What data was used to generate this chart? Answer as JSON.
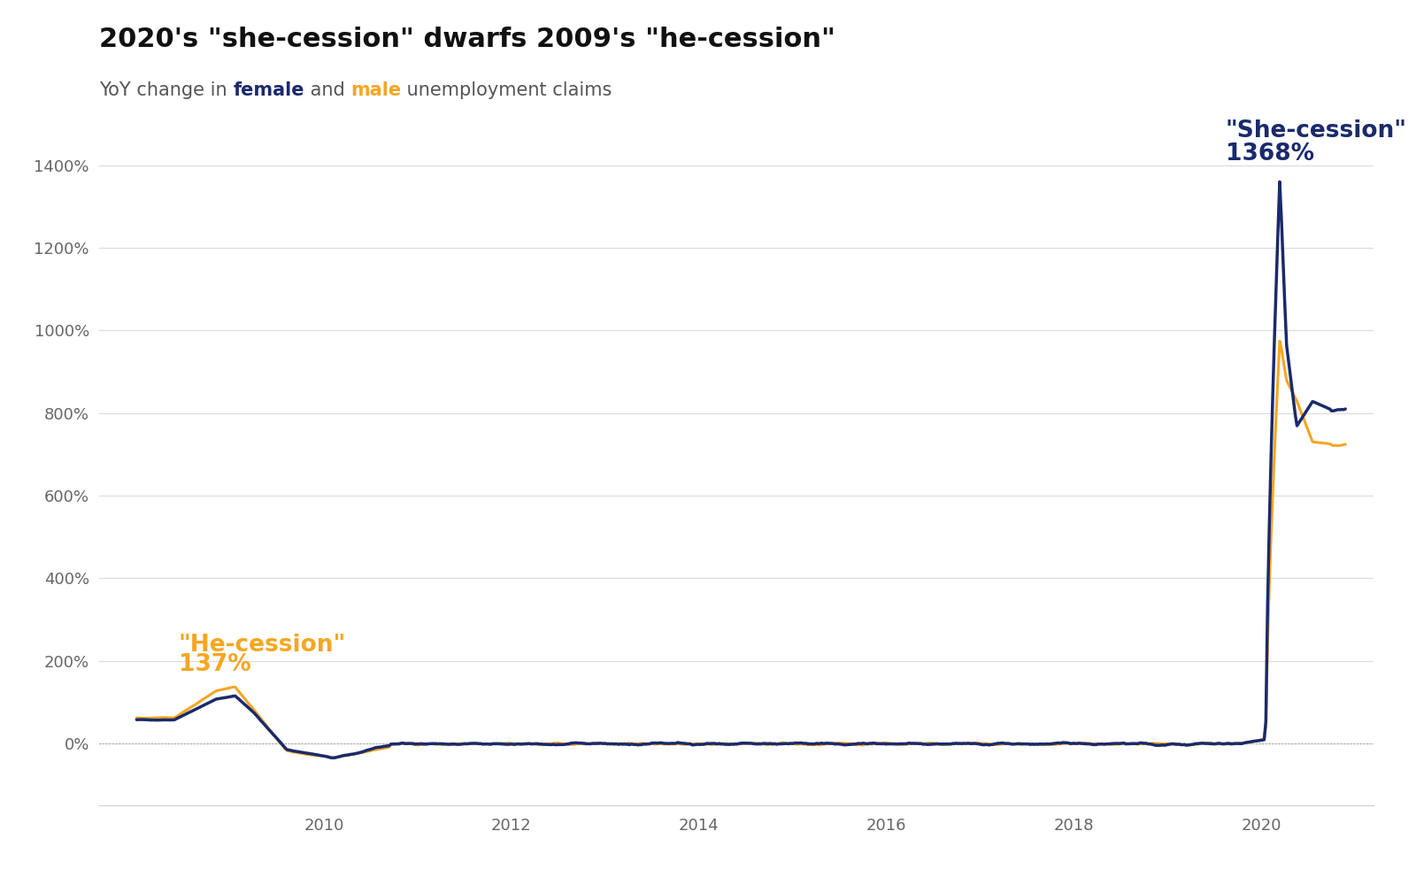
{
  "title": "2020's \"she-cession\" dwarfs 2009's \"he-cession\"",
  "subtitle_parts": [
    {
      "text": "YoY change in ",
      "color": "#555555",
      "bold": false
    },
    {
      "text": "female",
      "color": "#1a2a6c",
      "bold": true
    },
    {
      "text": " and ",
      "color": "#555555",
      "bold": false
    },
    {
      "text": "male",
      "color": "#f5a623",
      "bold": true
    },
    {
      "text": " unemployment claims",
      "color": "#555555",
      "bold": false
    }
  ],
  "female_color": "#1a2a6c",
  "male_color": "#f5a623",
  "background_color": "#ffffff",
  "annotation_he_label": "\"He-cession\"",
  "annotation_he_pct": "137%",
  "annotation_she_label": "\"She-cession\"",
  "annotation_she_pct": "1368%",
  "ylim": [
    -150,
    1500
  ],
  "yticks": [
    0,
    200,
    400,
    600,
    800,
    1000,
    1200,
    1400
  ],
  "ytick_labels": [
    "0%",
    "200%",
    "400%",
    "600%",
    "800%",
    "1000%",
    "1200%",
    "1400%"
  ],
  "xticks": [
    2008,
    2010,
    2012,
    2014,
    2016,
    2018,
    2020
  ],
  "xtick_labels": [
    "",
    "2010",
    "2012",
    "2014",
    "2016",
    "2018",
    "2020"
  ],
  "grid_color": "#dddddd",
  "zero_line_color": "#aaaaaa",
  "title_fontsize": 22,
  "subtitle_fontsize": 15,
  "tick_fontsize": 13,
  "annotation_fontsize": 19,
  "xlim_left": 2007.6,
  "xlim_right": 2021.2
}
